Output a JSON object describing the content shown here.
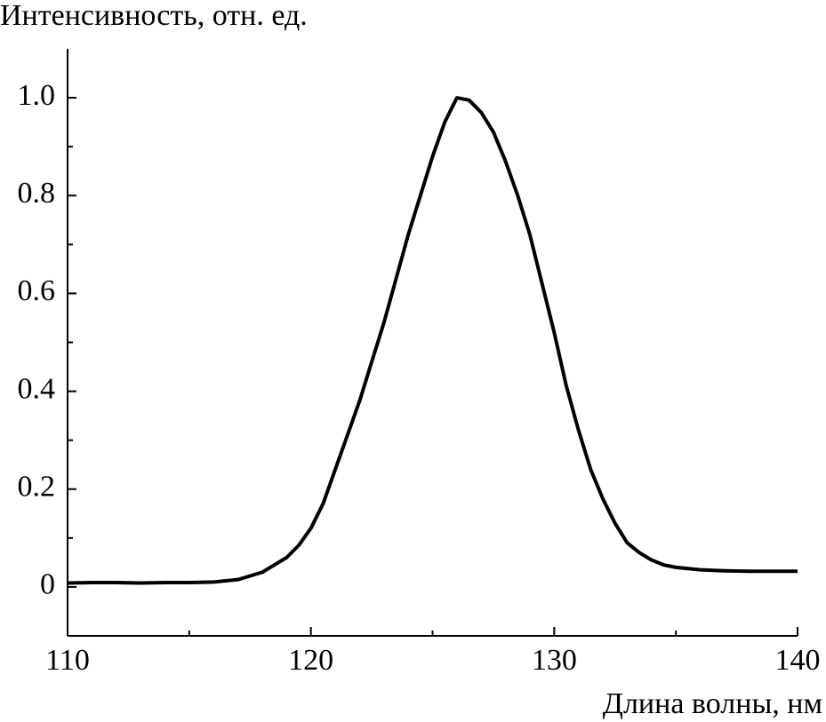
{
  "chart_data": {
    "type": "line",
    "y_label": "Интенсивность, отн. ед.",
    "x_label": "Длина волны, нм",
    "x": [
      110,
      111,
      112,
      113,
      114,
      115,
      116,
      117,
      118,
      119,
      119.5,
      120,
      120.5,
      121,
      121.5,
      122,
      122.5,
      123,
      123.5,
      124,
      124.5,
      125,
      125.5,
      126,
      126.5,
      127,
      127.5,
      128,
      128.5,
      129,
      129.5,
      130,
      130.5,
      131,
      131.5,
      132,
      132.5,
      133,
      133.5,
      134,
      134.5,
      135,
      136,
      137,
      138,
      139,
      140
    ],
    "series": [
      {
        "color": "#000000",
        "values": [
          0.008,
          0.009,
          0.009,
          0.008,
          0.009,
          0.009,
          0.01,
          0.015,
          0.03,
          0.06,
          0.085,
          0.12,
          0.17,
          0.24,
          0.31,
          0.38,
          0.46,
          0.54,
          0.63,
          0.72,
          0.8,
          0.88,
          0.95,
          1.0,
          0.995,
          0.97,
          0.93,
          0.87,
          0.8,
          0.72,
          0.62,
          0.52,
          0.41,
          0.32,
          0.24,
          0.18,
          0.13,
          0.09,
          0.07,
          0.055,
          0.045,
          0.04,
          0.035,
          0.033,
          0.032,
          0.032,
          0.032
        ]
      }
    ],
    "xlim": [
      110,
      140
    ],
    "xticks": [
      110,
      120,
      130,
      140
    ],
    "x_minor_ticks": [
      115,
      125,
      135
    ],
    "ylim": [
      -0.1,
      1.1
    ],
    "yticks": [
      0,
      0.2,
      0.4,
      0.6,
      0.8,
      {
        "value": 1,
        "label": "1.0"
      }
    ],
    "y_minor_ticks": [
      0.1,
      0.3,
      0.5,
      0.7,
      0.9
    ],
    "grid": false
  }
}
